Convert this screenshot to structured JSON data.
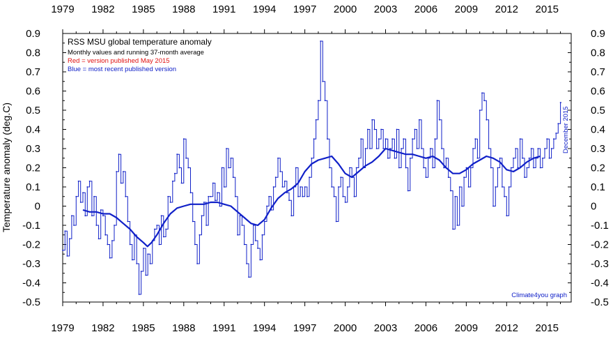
{
  "chart_data": {
    "type": "line",
    "title": "RSS MSU global temperature anomaly",
    "subtitle": "Monthly values and running 37-month average",
    "legend_red": "Red = version published May 2015",
    "legend_blue": "Blue = most recent published version",
    "ylabel": "Temperature anomaly (deg.C)",
    "xlabel": "",
    "credit": "Climate4you graph",
    "latest_label": "December 2015",
    "xlim": [
      1979.0,
      2016.8
    ],
    "ylim": [
      -0.5,
      0.9
    ],
    "x_ticks": [
      "1979",
      "1982",
      "1985",
      "1988",
      "1991",
      "1994",
      "1997",
      "2000",
      "2003",
      "2006",
      "2009",
      "2012",
      "2015"
    ],
    "y_ticks": [
      "0.9",
      "0.8",
      "0.7",
      "0.6",
      "0.5",
      "0.4",
      "0.3",
      "0.2",
      "0.1",
      "0",
      "-0.1",
      "-0.2",
      "-0.3",
      "-0.4",
      "-0.5"
    ],
    "colors": {
      "monthly": "#1020c8",
      "average": "#1020c8",
      "red_version": "#e01010",
      "axis": "#000000"
    },
    "series": [
      {
        "name": "Monthly values",
        "style": "step",
        "points": [
          [
            1979.0,
            -0.23
          ],
          [
            1979.17,
            -0.13
          ],
          [
            1979.33,
            -0.26
          ],
          [
            1979.5,
            -0.17
          ],
          [
            1979.67,
            -0.05
          ],
          [
            1979.83,
            -0.1
          ],
          [
            1980.0,
            0.05
          ],
          [
            1980.17,
            0.13
          ],
          [
            1980.33,
            0.02
          ],
          [
            1980.5,
            0.07
          ],
          [
            1980.67,
            -0.05
          ],
          [
            1980.83,
            0.1
          ],
          [
            1981.0,
            0.13
          ],
          [
            1981.17,
            -0.05
          ],
          [
            1981.33,
            0.05
          ],
          [
            1981.5,
            -0.1
          ],
          [
            1981.67,
            -0.17
          ],
          [
            1981.83,
            -0.02
          ],
          [
            1982.0,
            -0.05
          ],
          [
            1982.17,
            -0.15
          ],
          [
            1982.33,
            -0.2
          ],
          [
            1982.5,
            -0.27
          ],
          [
            1982.67,
            -0.18
          ],
          [
            1982.83,
            -0.1
          ],
          [
            1983.0,
            0.18
          ],
          [
            1983.17,
            0.27
          ],
          [
            1983.33,
            0.12
          ],
          [
            1983.5,
            0.18
          ],
          [
            1983.67,
            0.05
          ],
          [
            1983.83,
            -0.08
          ],
          [
            1984.0,
            -0.2
          ],
          [
            1984.17,
            -0.28
          ],
          [
            1984.33,
            -0.15
          ],
          [
            1984.5,
            -0.3
          ],
          [
            1984.67,
            -0.46
          ],
          [
            1984.83,
            -0.34
          ],
          [
            1985.0,
            -0.22
          ],
          [
            1985.17,
            -0.36
          ],
          [
            1985.33,
            -0.25
          ],
          [
            1985.5,
            -0.3
          ],
          [
            1985.67,
            -0.18
          ],
          [
            1985.83,
            -0.12
          ],
          [
            1986.0,
            -0.1
          ],
          [
            1986.17,
            -0.2
          ],
          [
            1986.33,
            -0.05
          ],
          [
            1986.5,
            -0.16
          ],
          [
            1986.67,
            -0.12
          ],
          [
            1986.83,
            0.05
          ],
          [
            1987.0,
            0.02
          ],
          [
            1987.17,
            0.13
          ],
          [
            1987.33,
            0.17
          ],
          [
            1987.5,
            0.27
          ],
          [
            1987.67,
            0.2
          ],
          [
            1987.83,
            0.12
          ],
          [
            1988.0,
            0.35
          ],
          [
            1988.17,
            0.25
          ],
          [
            1988.33,
            0.2
          ],
          [
            1988.5,
            0.07
          ],
          [
            1988.67,
            -0.08
          ],
          [
            1988.83,
            -0.2
          ],
          [
            1989.0,
            -0.3
          ],
          [
            1989.17,
            -0.15
          ],
          [
            1989.33,
            -0.05
          ],
          [
            1989.5,
            0.02
          ],
          [
            1989.67,
            -0.1
          ],
          [
            1989.83,
            0.05
          ],
          [
            1990.0,
            0.05
          ],
          [
            1990.17,
            0.12
          ],
          [
            1990.33,
            0.03
          ],
          [
            1990.5,
            0.07
          ],
          [
            1990.67,
            0.0
          ],
          [
            1990.83,
            0.2
          ],
          [
            1991.0,
            0.1
          ],
          [
            1991.17,
            0.3
          ],
          [
            1991.33,
            0.2
          ],
          [
            1991.5,
            0.25
          ],
          [
            1991.67,
            0.15
          ],
          [
            1991.83,
            0.05
          ],
          [
            1992.0,
            -0.15
          ],
          [
            1992.17,
            -0.05
          ],
          [
            1992.33,
            -0.1
          ],
          [
            1992.5,
            -0.2
          ],
          [
            1992.67,
            -0.3
          ],
          [
            1992.83,
            -0.37
          ],
          [
            1993.0,
            -0.2
          ],
          [
            1993.17,
            -0.1
          ],
          [
            1993.33,
            -0.18
          ],
          [
            1993.5,
            -0.22
          ],
          [
            1993.67,
            -0.28
          ],
          [
            1993.83,
            -0.15
          ],
          [
            1994.0,
            -0.08
          ],
          [
            1994.17,
            0.0
          ],
          [
            1994.33,
            0.05
          ],
          [
            1994.5,
            -0.02
          ],
          [
            1994.67,
            0.1
          ],
          [
            1994.83,
            0.15
          ],
          [
            1995.0,
            0.25
          ],
          [
            1995.17,
            0.18
          ],
          [
            1995.33,
            0.1
          ],
          [
            1995.5,
            0.13
          ],
          [
            1995.67,
            0.07
          ],
          [
            1995.83,
            0.03
          ],
          [
            1996.0,
            -0.05
          ],
          [
            1996.17,
            0.1
          ],
          [
            1996.33,
            0.2
          ],
          [
            1996.5,
            0.05
          ],
          [
            1996.67,
            0.1
          ],
          [
            1996.83,
            0.05
          ],
          [
            1997.0,
            0.1
          ],
          [
            1997.17,
            0.05
          ],
          [
            1997.33,
            0.15
          ],
          [
            1997.5,
            0.25
          ],
          [
            1997.67,
            0.35
          ],
          [
            1997.83,
            0.45
          ],
          [
            1998.0,
            0.55
          ],
          [
            1998.17,
            0.86
          ],
          [
            1998.33,
            0.65
          ],
          [
            1998.5,
            0.55
          ],
          [
            1998.67,
            0.35
          ],
          [
            1998.83,
            0.2
          ],
          [
            1999.0,
            0.1
          ],
          [
            1999.17,
            0.05
          ],
          [
            1999.33,
            -0.08
          ],
          [
            1999.5,
            0.1
          ],
          [
            1999.67,
            0.15
          ],
          [
            1999.83,
            0.05
          ],
          [
            2000.0,
            0.02
          ],
          [
            2000.17,
            0.1
          ],
          [
            2000.33,
            0.2
          ],
          [
            2000.5,
            0.15
          ],
          [
            2000.67,
            0.05
          ],
          [
            2000.83,
            0.2
          ],
          [
            2001.0,
            0.25
          ],
          [
            2001.17,
            0.35
          ],
          [
            2001.33,
            0.2
          ],
          [
            2001.5,
            0.3
          ],
          [
            2001.67,
            0.4
          ],
          [
            2001.83,
            0.3
          ],
          [
            2002.0,
            0.45
          ],
          [
            2002.17,
            0.4
          ],
          [
            2002.33,
            0.3
          ],
          [
            2002.5,
            0.35
          ],
          [
            2002.67,
            0.4
          ],
          [
            2002.83,
            0.3
          ],
          [
            2003.0,
            0.35
          ],
          [
            2003.17,
            0.25
          ],
          [
            2003.33,
            0.3
          ],
          [
            2003.5,
            0.35
          ],
          [
            2003.67,
            0.25
          ],
          [
            2003.83,
            0.4
          ],
          [
            2004.0,
            0.2
          ],
          [
            2004.17,
            0.3
          ],
          [
            2004.33,
            0.35
          ],
          [
            2004.5,
            0.2
          ],
          [
            2004.67,
            0.08
          ],
          [
            2004.83,
            0.25
          ],
          [
            2005.0,
            0.35
          ],
          [
            2005.17,
            0.4
          ],
          [
            2005.33,
            0.3
          ],
          [
            2005.5,
            0.45
          ],
          [
            2005.67,
            0.3
          ],
          [
            2005.83,
            0.2
          ],
          [
            2006.0,
            0.15
          ],
          [
            2006.17,
            0.25
          ],
          [
            2006.33,
            0.3
          ],
          [
            2006.5,
            0.2
          ],
          [
            2006.67,
            0.35
          ],
          [
            2006.83,
            0.55
          ],
          [
            2007.0,
            0.45
          ],
          [
            2007.17,
            0.3
          ],
          [
            2007.33,
            0.2
          ],
          [
            2007.5,
            0.25
          ],
          [
            2007.67,
            0.15
          ],
          [
            2007.83,
            0.08
          ],
          [
            2008.0,
            -0.12
          ],
          [
            2008.17,
            0.05
          ],
          [
            2008.33,
            -0.1
          ],
          [
            2008.5,
            0.1
          ],
          [
            2008.67,
            0.0
          ],
          [
            2008.83,
            0.15
          ],
          [
            2009.0,
            0.2
          ],
          [
            2009.17,
            0.1
          ],
          [
            2009.33,
            0.2
          ],
          [
            2009.5,
            0.3
          ],
          [
            2009.67,
            0.35
          ],
          [
            2009.83,
            0.25
          ],
          [
            2010.0,
            0.5
          ],
          [
            2010.17,
            0.59
          ],
          [
            2010.33,
            0.55
          ],
          [
            2010.5,
            0.45
          ],
          [
            2010.67,
            0.3
          ],
          [
            2010.83,
            0.2
          ],
          [
            2011.0,
            0.0
          ],
          [
            2011.17,
            0.1
          ],
          [
            2011.33,
            0.2
          ],
          [
            2011.5,
            0.25
          ],
          [
            2011.67,
            0.1
          ],
          [
            2011.83,
            0.05
          ],
          [
            2012.0,
            -0.05
          ],
          [
            2012.17,
            0.1
          ],
          [
            2012.33,
            0.2
          ],
          [
            2012.5,
            0.25
          ],
          [
            2012.67,
            0.3
          ],
          [
            2012.83,
            0.2
          ],
          [
            2013.0,
            0.35
          ],
          [
            2013.17,
            0.25
          ],
          [
            2013.33,
            0.15
          ],
          [
            2013.5,
            0.2
          ],
          [
            2013.67,
            0.25
          ],
          [
            2013.83,
            0.3
          ],
          [
            2014.0,
            0.2
          ],
          [
            2014.17,
            0.25
          ],
          [
            2014.33,
            0.3
          ],
          [
            2014.5,
            0.2
          ],
          [
            2014.67,
            0.25
          ],
          [
            2014.83,
            0.3
          ],
          [
            2015.0,
            0.35
          ],
          [
            2015.17,
            0.25
          ],
          [
            2015.33,
            0.3
          ],
          [
            2015.5,
            0.35
          ],
          [
            2015.67,
            0.38
          ],
          [
            2015.83,
            0.43
          ],
          [
            2016.0,
            0.54
          ]
        ]
      },
      {
        "name": "Running 37-month average",
        "style": "line",
        "points": [
          [
            1980.5,
            -0.02
          ],
          [
            1981.0,
            -0.03
          ],
          [
            1981.5,
            -0.03
          ],
          [
            1982.0,
            -0.04
          ],
          [
            1982.5,
            -0.04
          ],
          [
            1983.0,
            -0.06
          ],
          [
            1983.5,
            -0.09
          ],
          [
            1984.0,
            -0.12
          ],
          [
            1984.5,
            -0.16
          ],
          [
            1985.0,
            -0.19
          ],
          [
            1985.3,
            -0.21
          ],
          [
            1985.6,
            -0.19
          ],
          [
            1986.0,
            -0.15
          ],
          [
            1986.5,
            -0.09
          ],
          [
            1987.0,
            -0.04
          ],
          [
            1987.5,
            -0.01
          ],
          [
            1988.0,
            0.0
          ],
          [
            1988.5,
            0.01
          ],
          [
            1989.0,
            0.01
          ],
          [
            1989.5,
            0.01
          ],
          [
            1990.0,
            0.02
          ],
          [
            1990.5,
            0.02
          ],
          [
            1991.0,
            0.01
          ],
          [
            1991.5,
            0.0
          ],
          [
            1992.0,
            -0.03
          ],
          [
            1992.5,
            -0.06
          ],
          [
            1993.0,
            -0.09
          ],
          [
            1993.5,
            -0.1
          ],
          [
            1994.0,
            -0.07
          ],
          [
            1994.5,
            -0.01
          ],
          [
            1995.0,
            0.04
          ],
          [
            1995.5,
            0.07
          ],
          [
            1996.0,
            0.09
          ],
          [
            1996.5,
            0.12
          ],
          [
            1997.0,
            0.18
          ],
          [
            1997.5,
            0.22
          ],
          [
            1998.0,
            0.24
          ],
          [
            1998.5,
            0.25
          ],
          [
            1999.0,
            0.26
          ],
          [
            1999.5,
            0.22
          ],
          [
            2000.0,
            0.17
          ],
          [
            2000.5,
            0.15
          ],
          [
            2001.0,
            0.18
          ],
          [
            2001.5,
            0.21
          ],
          [
            2002.0,
            0.23
          ],
          [
            2002.5,
            0.26
          ],
          [
            2003.0,
            0.3
          ],
          [
            2003.5,
            0.29
          ],
          [
            2004.0,
            0.28
          ],
          [
            2004.5,
            0.27
          ],
          [
            2005.0,
            0.27
          ],
          [
            2005.5,
            0.26
          ],
          [
            2006.0,
            0.25
          ],
          [
            2006.5,
            0.26
          ],
          [
            2007.0,
            0.24
          ],
          [
            2007.5,
            0.2
          ],
          [
            2008.0,
            0.17
          ],
          [
            2008.5,
            0.17
          ],
          [
            2009.0,
            0.19
          ],
          [
            2009.5,
            0.22
          ],
          [
            2010.0,
            0.24
          ],
          [
            2010.5,
            0.26
          ],
          [
            2011.0,
            0.25
          ],
          [
            2011.5,
            0.23
          ],
          [
            2012.0,
            0.19
          ],
          [
            2012.5,
            0.18
          ],
          [
            2013.0,
            0.2
          ],
          [
            2013.5,
            0.23
          ],
          [
            2014.0,
            0.25
          ],
          [
            2014.5,
            0.26
          ]
        ]
      }
    ]
  }
}
